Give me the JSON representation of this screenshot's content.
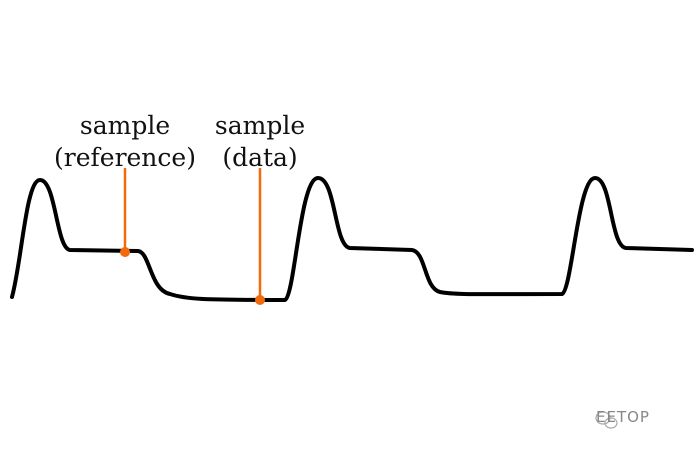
{
  "labels": {
    "reference": {
      "line1": "sample",
      "line2": "(reference)"
    },
    "data": {
      "line1": "sample",
      "line2": "(data)"
    }
  },
  "watermark": "EETOP",
  "colors": {
    "waveform": "#000000",
    "marker": "#f26a0c"
  }
}
